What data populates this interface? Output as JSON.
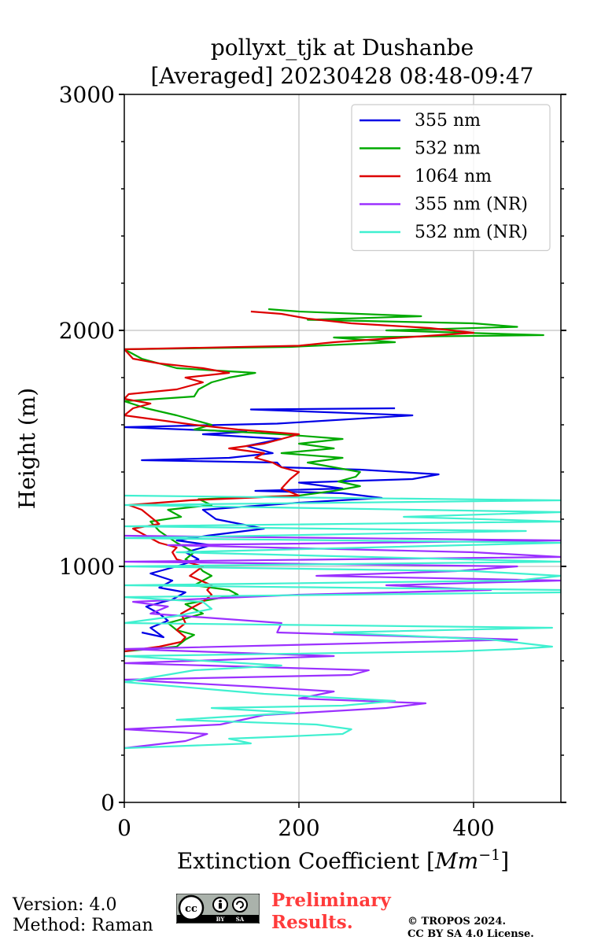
{
  "chart_data": {
    "type": "line",
    "title": "pollyxt_tjk at Dushanbe",
    "subtitle": "[Averaged] 20230428 08:48-09:47",
    "xlabel_text": "Extinction Coefficient [",
    "xlabel_unit": "Mm",
    "xlabel_exp": "−1",
    "xlabel_close": "]",
    "ylabel": "Height (m)",
    "xlim": [
      0,
      500
    ],
    "ylim": [
      0,
      3000
    ],
    "xticks": [
      0,
      200,
      400
    ],
    "xtick_labels": [
      "0",
      "200",
      "400"
    ],
    "yticks": [
      0,
      1000,
      2000,
      3000
    ],
    "ytick_labels": [
      "0",
      "1000",
      "2000",
      "3000"
    ],
    "y_minor_step": 200,
    "grid": true,
    "legend_position": "top-right",
    "series": [
      {
        "name": "355 nm",
        "color": "#0000e6",
        "points": [
          [
            20,
            720
          ],
          [
            45,
            700
          ],
          [
            30,
            740
          ],
          [
            50,
            770
          ],
          [
            40,
            800
          ],
          [
            25,
            830
          ],
          [
            55,
            860
          ],
          [
            70,
            890
          ],
          [
            40,
            910
          ],
          [
            55,
            940
          ],
          [
            30,
            970
          ],
          [
            60,
            1000
          ],
          [
            85,
            1030
          ],
          [
            70,
            1060
          ],
          [
            100,
            1090
          ],
          [
            60,
            1110
          ],
          [
            95,
            1130
          ],
          [
            160,
            1160
          ],
          [
            105,
            1200
          ],
          [
            90,
            1240
          ],
          [
            200,
            1270
          ],
          [
            295,
            1290
          ],
          [
            250,
            1310
          ],
          [
            150,
            1320
          ],
          [
            250,
            1330
          ],
          [
            200,
            1355
          ],
          [
            330,
            1370
          ],
          [
            360,
            1390
          ],
          [
            270,
            1410
          ],
          [
            180,
            1420
          ],
          [
            175,
            1440
          ],
          [
            20,
            1450
          ],
          [
            120,
            1460
          ],
          [
            170,
            1480
          ],
          [
            140,
            1510
          ],
          [
            180,
            1540
          ],
          [
            90,
            1560
          ],
          [
            140,
            1570
          ],
          [
            0,
            1590
          ],
          [
            175,
            1605
          ],
          [
            330,
            1640
          ],
          [
            145,
            1665
          ],
          [
            310,
            1670
          ]
        ]
      },
      {
        "name": "532 nm",
        "color": "#00aa00",
        "points": [
          [
            0,
            640
          ],
          [
            60,
            660
          ],
          [
            70,
            690
          ],
          [
            80,
            710
          ],
          [
            60,
            730
          ],
          [
            50,
            760
          ],
          [
            90,
            800
          ],
          [
            70,
            840
          ],
          [
            100,
            860
          ],
          [
            130,
            880
          ],
          [
            120,
            900
          ],
          [
            80,
            920
          ],
          [
            100,
            960
          ],
          [
            90,
            980
          ],
          [
            85,
            1000
          ],
          [
            70,
            1030
          ],
          [
            80,
            1060
          ],
          [
            60,
            1100
          ],
          [
            40,
            1150
          ],
          [
            30,
            1190
          ],
          [
            65,
            1210
          ],
          [
            50,
            1240
          ],
          [
            100,
            1260
          ],
          [
            85,
            1285
          ],
          [
            200,
            1300
          ],
          [
            240,
            1320
          ],
          [
            270,
            1340
          ],
          [
            245,
            1360
          ],
          [
            265,
            1380
          ],
          [
            270,
            1400
          ],
          [
            240,
            1420
          ],
          [
            210,
            1440
          ],
          [
            250,
            1460
          ],
          [
            180,
            1480
          ],
          [
            240,
            1500
          ],
          [
            200,
            1520
          ],
          [
            250,
            1540
          ],
          [
            180,
            1560
          ],
          [
            80,
            1580
          ],
          [
            100,
            1600
          ],
          [
            60,
            1640
          ],
          [
            25,
            1670
          ],
          [
            0,
            1700
          ],
          [
            80,
            1720
          ],
          [
            85,
            1750
          ],
          [
            100,
            1780
          ],
          [
            120,
            1800
          ],
          [
            150,
            1820
          ],
          [
            60,
            1840
          ],
          [
            40,
            1860
          ],
          [
            20,
            1880
          ],
          [
            0,
            1920
          ],
          [
            190,
            1930
          ],
          [
            310,
            1950
          ],
          [
            240,
            1970
          ],
          [
            480,
            1980
          ],
          [
            300,
            2000
          ],
          [
            450,
            2015
          ],
          [
            400,
            2030
          ],
          [
            210,
            2045
          ],
          [
            340,
            2060
          ],
          [
            200,
            2080
          ],
          [
            165,
            2090
          ]
        ]
      },
      {
        "name": "1064 nm",
        "color": "#dd0000",
        "points": [
          [
            0,
            640
          ],
          [
            40,
            660
          ],
          [
            65,
            680
          ],
          [
            70,
            700
          ],
          [
            60,
            730
          ],
          [
            70,
            760
          ],
          [
            65,
            800
          ],
          [
            80,
            830
          ],
          [
            90,
            850
          ],
          [
            100,
            880
          ],
          [
            95,
            900
          ],
          [
            100,
            920
          ],
          [
            75,
            960
          ],
          [
            90,
            1000
          ],
          [
            60,
            1030
          ],
          [
            55,
            1060
          ],
          [
            60,
            1080
          ],
          [
            40,
            1100
          ],
          [
            20,
            1140
          ],
          [
            10,
            1160
          ],
          [
            40,
            1180
          ],
          [
            30,
            1210
          ],
          [
            20,
            1240
          ],
          [
            5,
            1260
          ],
          [
            75,
            1280
          ],
          [
            200,
            1300
          ],
          [
            180,
            1330
          ],
          [
            190,
            1370
          ],
          [
            200,
            1400
          ],
          [
            180,
            1420
          ],
          [
            170,
            1440
          ],
          [
            150,
            1460
          ],
          [
            160,
            1480
          ],
          [
            120,
            1500
          ],
          [
            160,
            1520
          ],
          [
            180,
            1540
          ],
          [
            200,
            1560
          ],
          [
            130,
            1580
          ],
          [
            80,
            1600
          ],
          [
            40,
            1620
          ],
          [
            0,
            1640
          ],
          [
            10,
            1670
          ],
          [
            30,
            1690
          ],
          [
            0,
            1710
          ],
          [
            5,
            1730
          ],
          [
            60,
            1750
          ],
          [
            90,
            1780
          ],
          [
            70,
            1800
          ],
          [
            120,
            1820
          ],
          [
            90,
            1840
          ],
          [
            40,
            1860
          ],
          [
            10,
            1880
          ],
          [
            0,
            1920
          ],
          [
            200,
            1935
          ],
          [
            240,
            1950
          ],
          [
            320,
            1970
          ],
          [
            400,
            1990
          ],
          [
            350,
            2010
          ],
          [
            260,
            2030
          ],
          [
            210,
            2050
          ],
          [
            180,
            2070
          ],
          [
            145,
            2080
          ]
        ]
      },
      {
        "name": "355 nm (NR)",
        "color": "#9b30ff",
        "points": [
          [
            0,
            230
          ],
          [
            70,
            260
          ],
          [
            95,
            290
          ],
          [
            0,
            310
          ],
          [
            110,
            330
          ],
          [
            160,
            370
          ],
          [
            300,
            400
          ],
          [
            345,
            420
          ],
          [
            200,
            440
          ],
          [
            240,
            470
          ],
          [
            150,
            490
          ],
          [
            0,
            520
          ],
          [
            260,
            540
          ],
          [
            280,
            560
          ],
          [
            0,
            590
          ],
          [
            240,
            620
          ],
          [
            0,
            650
          ],
          [
            450,
            690
          ],
          [
            175,
            720
          ],
          [
            180,
            760
          ],
          [
            30,
            800
          ],
          [
            50,
            830
          ],
          [
            10,
            850
          ],
          [
            200,
            880
          ],
          [
            420,
            900
          ],
          [
            300,
            920
          ],
          [
            500,
            940
          ],
          [
            220,
            960
          ],
          [
            380,
            980
          ],
          [
            450,
            1000
          ],
          [
            0,
            1020
          ],
          [
            500,
            1040
          ],
          [
            400,
            1060
          ],
          [
            50,
            1090
          ],
          [
            500,
            1110
          ],
          [
            0,
            1130
          ]
        ]
      },
      {
        "name": "532 nm (NR)",
        "color": "#40f0d0",
        "points": [
          [
            0,
            230
          ],
          [
            145,
            250
          ],
          [
            120,
            270
          ],
          [
            190,
            280
          ],
          [
            250,
            290
          ],
          [
            260,
            310
          ],
          [
            220,
            330
          ],
          [
            60,
            350
          ],
          [
            150,
            370
          ],
          [
            195,
            380
          ],
          [
            100,
            400
          ],
          [
            250,
            410
          ],
          [
            310,
            430
          ],
          [
            160,
            460
          ],
          [
            0,
            510
          ],
          [
            80,
            560
          ],
          [
            180,
            580
          ],
          [
            0,
            620
          ],
          [
            380,
            640
          ],
          [
            450,
            650
          ],
          [
            490,
            660
          ],
          [
            420,
            690
          ],
          [
            240,
            720
          ],
          [
            490,
            740
          ],
          [
            0,
            760
          ],
          [
            60,
            790
          ],
          [
            100,
            820
          ],
          [
            90,
            850
          ],
          [
            0,
            870
          ],
          [
            500,
            890
          ],
          [
            500,
            900
          ],
          [
            0,
            920
          ],
          [
            450,
            940
          ],
          [
            500,
            960
          ],
          [
            400,
            980
          ],
          [
            0,
            1000
          ],
          [
            500,
            1020
          ],
          [
            60,
            1060
          ],
          [
            500,
            1100
          ],
          [
            0,
            1120
          ],
          [
            460,
            1150
          ],
          [
            0,
            1170
          ],
          [
            500,
            1190
          ],
          [
            320,
            1210
          ],
          [
            500,
            1230
          ],
          [
            0,
            1260
          ],
          [
            500,
            1280
          ],
          [
            0,
            1300
          ]
        ]
      }
    ]
  },
  "footer": {
    "version": "Version: 4.0",
    "method": "Method: Raman",
    "preliminary_line1": "Preliminary",
    "preliminary_line2": "Results.",
    "copyright_line1": "© TROPOS 2024.",
    "copyright_line2": "CC BY SA 4.0 License.",
    "license_badge": {
      "left": "BY",
      "right": "SA"
    }
  }
}
